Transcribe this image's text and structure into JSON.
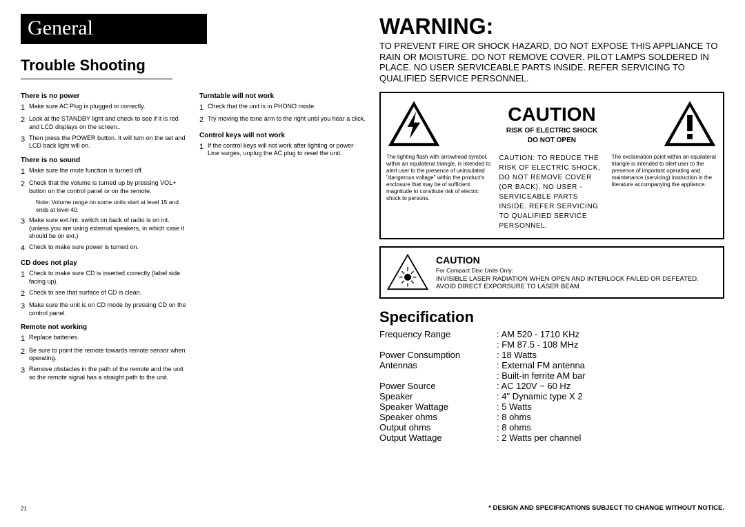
{
  "page_number": "21",
  "general_banner": "General",
  "trouble_shooting": {
    "title": "Trouble Shooting",
    "left": [
      {
        "heading": "There is no power",
        "items": [
          {
            "n": "1",
            "t": "Make sure AC Plug is plugged in correctly."
          },
          {
            "n": "2",
            "t": "Look at the STANDBY light and check to see if it is red and LCD displays on the screen.."
          },
          {
            "n": "3",
            "t": "Then press the POWER button. It will turn on the set and LCD back light will on."
          }
        ]
      },
      {
        "heading": "There is no sound",
        "items": [
          {
            "n": "1",
            "t": "Make sure the mute function is turned off."
          },
          {
            "n": "2",
            "t": "Check that the volume is turned up by pressing VOL+ button on the control panel or on the remote.",
            "note": "Note: Volume range on some units start at level 15 and ends at level 40."
          },
          {
            "n": "3",
            "t": "Make sure ext./int. switch on back of radio is on int. (unless you are using external speakers, in which case it should be on ext.)"
          },
          {
            "n": "4",
            "t": "Check to make sure power is turned on."
          }
        ]
      },
      {
        "heading": "CD does not play",
        "items": [
          {
            "n": "1",
            "t": "Check to make sure CD is inserted correctly (label side facing up)."
          },
          {
            "n": "2",
            "t": "Check to see that surface of CD is clean."
          },
          {
            "n": "3",
            "t": "Make sure the unit is on CD mode by pressing CD on the control panel."
          }
        ]
      },
      {
        "heading": "Remote not working",
        "items": [
          {
            "n": "1",
            "t": "Replace batteries."
          },
          {
            "n": "2",
            "t": "Be sure to point the remote towards remote sensor when operating."
          },
          {
            "n": "3",
            "t": "Remove obstacles in the path of the remote and the unit so the remote signal has a straight path to the unit."
          }
        ]
      }
    ],
    "right": [
      {
        "heading": "Turntable will not work",
        "items": [
          {
            "n": "1",
            "t": "Check that the unit is in PHONO mode."
          },
          {
            "n": "2",
            "t": "Try moving the tone arm to the right until you hear a click."
          }
        ]
      },
      {
        "heading": "Control keys will not work",
        "items": [
          {
            "n": "1",
            "t": "If the control keys will not work after lighting or power-Line surges, unplug the AC plug to reset the unit."
          }
        ]
      }
    ]
  },
  "warning": {
    "heading": "WARNING:",
    "text": "TO PREVENT FIRE OR SHOCK HAZARD, DO NOT EXPOSE THIS APPLIANCE TO RAIN OR MOISTURE. DO NOT REMOVE COVER. PILOT LAMPS SOLDERED IN PLACE. NO USER SERVICEABLE PARTS INSIDE. REFER SERVICING TO QUALIFIED SERVICE PERSONNEL."
  },
  "caution_box": {
    "word": "CAUTION",
    "sub1": "RISK OF ELECTRIC SHOCK",
    "sub2": "DO NOT OPEN",
    "left_text": "The lighting flash with arrowhead symbol, within an equilateral triangle, is intended to alert user to the presence of uninsulated \"dangerous voltage\" within the product's enclosure that may be of sufficient magnitude to constitute risk of electric shock to persons.",
    "mid_text": "CAUTION: TO REDUCE THE RISK OF ELECTRIC SHOCK, DO NOT REMOVE COVER (OR BACK). NO USER - SERVICEABLE PARTS INSIDE. REFER SERVICING TO QUALIFIED SERVICE PERSONNEL.",
    "right_text": "The exclamation point within an equilateral triangle is intended to alert user to the presence of important operating and maintenance (servicing) instruction in the literature accompanying the appliance."
  },
  "laser": {
    "heading": "CAUTION",
    "sub": "For Compact Disc Units Only:",
    "body": "INVISIBLE LASER RADIATION WHEN OPEN AND INTERLOCK FAILED OR DEFEATED. AVOID DIRECT EXPORSURE TO LASER BEAM."
  },
  "specification": {
    "title": "Specification",
    "rows": [
      {
        "k": "Frequency Range",
        "v": "AM 520 - 1710 KHz"
      },
      {
        "k": "",
        "v": "FM 87.5 - 108 MHz"
      },
      {
        "k": "Power Consumption",
        "v": "18 Watts"
      },
      {
        "k": "Antennas",
        "v": "External FM antenna"
      },
      {
        "k": "",
        "v": "Built-in ferrite AM bar"
      },
      {
        "k": "Power Source",
        "v": "AC 120V ~ 60 Hz"
      },
      {
        "k": "Speaker",
        "v": "4\" Dynamic type X 2"
      },
      {
        "k": "Speaker Wattage",
        "v": "5 Watts"
      },
      {
        "k": "Speaker ohms",
        "v": "8 ohms"
      },
      {
        "k": "Output ohms",
        "v": "8 ohms"
      },
      {
        "k": "Output Wattage",
        "v": "2 Watts per channel"
      }
    ]
  },
  "footnote": "* DESIGN AND SPECIFICATIONS SUBJECT TO CHANGE WITHOUT NOTICE."
}
